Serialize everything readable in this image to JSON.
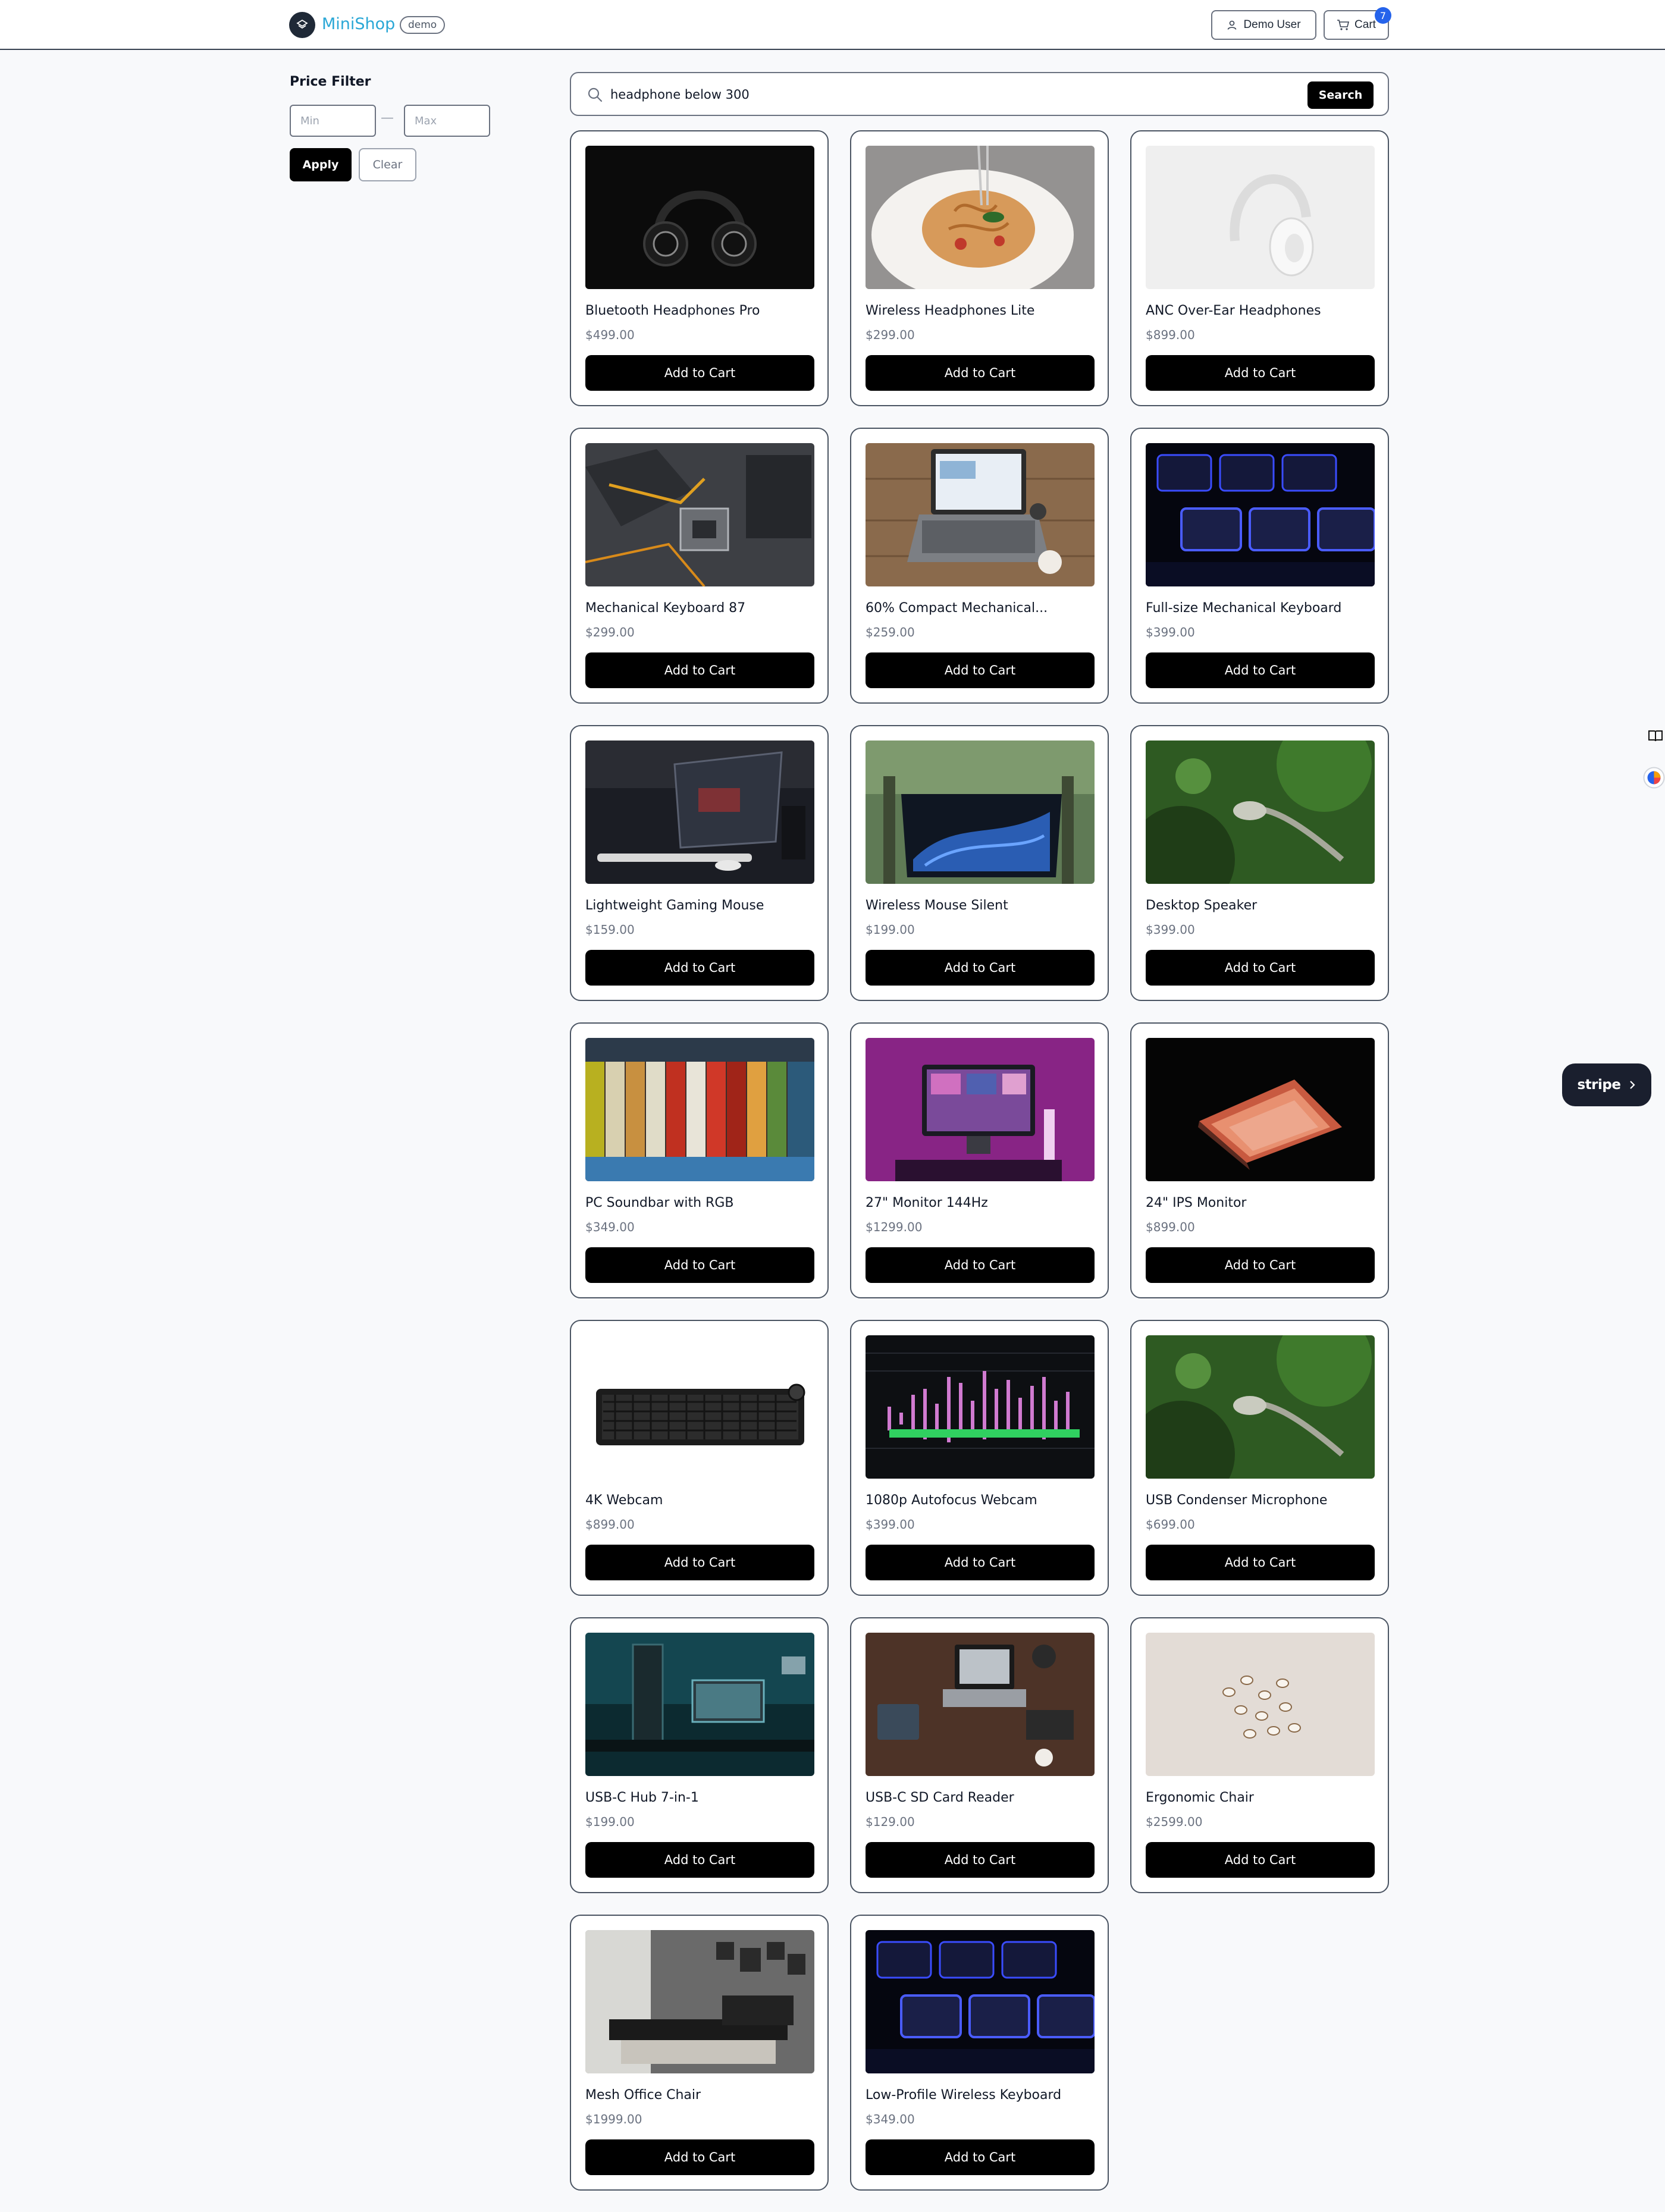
{
  "header": {
    "brand": "MiniShop",
    "badge": "demo",
    "user_label": "Demo User",
    "cart_label": "Cart",
    "cart_count": "7"
  },
  "sidebar": {
    "title": "Price Filter",
    "min_placeholder": "Min",
    "max_placeholder": "Max",
    "separator": "—",
    "apply_label": "Apply",
    "clear_label": "Clear"
  },
  "search": {
    "value": "headphone below 300",
    "button_label": "Search"
  },
  "products": [
    {
      "name": "Bluetooth Headphones Pro",
      "price": "$499.00",
      "button": "Add to Cart",
      "image": "headphones-dark"
    },
    {
      "name": "Wireless Headphones Lite",
      "price": "$299.00",
      "button": "Add to Cart",
      "image": "pasta-plate"
    },
    {
      "name": "ANC Over-Ear Headphones",
      "price": "$899.00",
      "button": "Add to Cart",
      "image": "headphones-white"
    },
    {
      "name": "Mechanical Keyboard 87",
      "price": "$299.00",
      "button": "Add to Cart",
      "image": "motherboard"
    },
    {
      "name": "60% Compact Mechanical...",
      "price": "$259.00",
      "button": "Add to Cart",
      "image": "laptop-desk"
    },
    {
      "name": "Full-size Mechanical Keyboard",
      "price": "$399.00",
      "button": "Add to Cart",
      "image": "blue-keys"
    },
    {
      "name": "Lightweight Gaming Mouse",
      "price": "$159.00",
      "button": "Add to Cart",
      "image": "laptop-night"
    },
    {
      "name": "Wireless Mouse Silent",
      "price": "$199.00",
      "button": "Add to Cart",
      "image": "laptop-outdoor"
    },
    {
      "name": "Desktop Speaker",
      "price": "$399.00",
      "button": "Add to Cart",
      "image": "green-plant"
    },
    {
      "name": "PC Soundbar with RGB",
      "price": "$349.00",
      "button": "Add to Cart",
      "image": "painted-keys"
    },
    {
      "name": "27\" Monitor 144Hz",
      "price": "$1299.00",
      "button": "Add to Cart",
      "image": "pink-monitor"
    },
    {
      "name": "24\" IPS Monitor",
      "price": "$899.00",
      "button": "Add to Cart",
      "image": "laptop-glow"
    },
    {
      "name": "4K Webcam",
      "price": "$899.00",
      "button": "Add to Cart",
      "image": "keyboard-white"
    },
    {
      "name": "1080p Autofocus Webcam",
      "price": "$399.00",
      "button": "Add to Cart",
      "image": "audio-editor"
    },
    {
      "name": "USB Condenser Microphone",
      "price": "$699.00",
      "button": "Add to Cart",
      "image": "green-plant"
    },
    {
      "name": "USB-C Hub 7-in-1",
      "price": "$199.00",
      "button": "Add to Cart",
      "image": "teal-desk"
    },
    {
      "name": "USB-C SD Card Reader",
      "price": "$129.00",
      "button": "Add to Cart",
      "image": "wood-desk"
    },
    {
      "name": "Ergonomic Chair",
      "price": "$2599.00",
      "button": "Add to Cart",
      "image": "shells"
    },
    {
      "name": "Mesh Office Chair",
      "price": "$1999.00",
      "button": "Add to Cart",
      "image": "sofa-room"
    },
    {
      "name": "Low-Profile Wireless Keyboard",
      "price": "$349.00",
      "button": "Add to Cart",
      "image": "blue-keys"
    }
  ],
  "widgets": {
    "stripe_label": "stripe"
  },
  "colors": {
    "brand": "#2aa7d6",
    "cart_badge": "#2563eb",
    "button": "#000000",
    "stripe_pill": "#1a1f2e"
  }
}
